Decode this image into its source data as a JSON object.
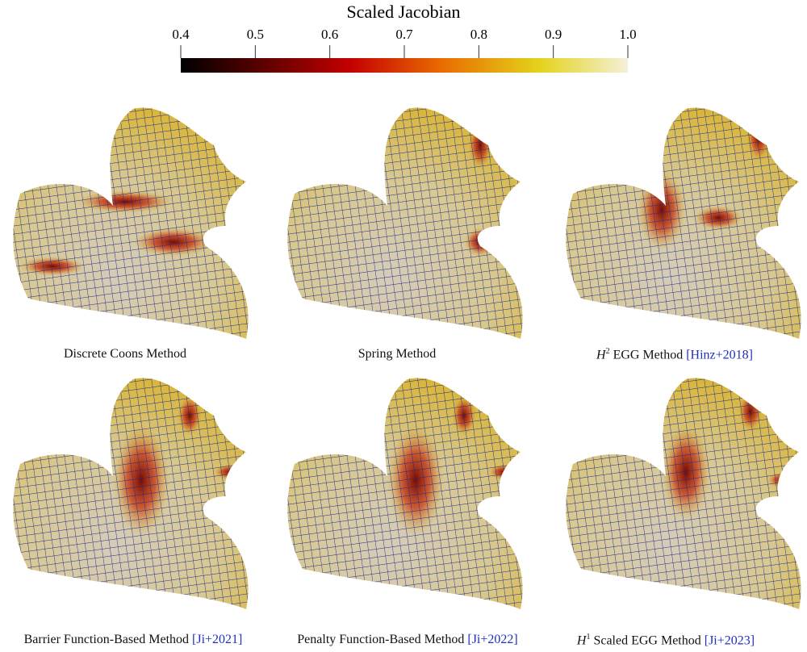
{
  "colorbar": {
    "title": "Scaled Jacobian",
    "range": [
      0.4,
      1.0
    ],
    "ticks": [
      0.4,
      0.5,
      0.6,
      0.7,
      0.8,
      0.9,
      {
        "value": 1,
        "label": "1.0"
      }
    ]
  },
  "panels": [
    {
      "caption": "Discrete Coons Method"
    },
    {
      "caption": "Spring Method"
    },
    {
      "symbol": "H",
      "exponent": "2",
      "caption": "EGG Method",
      "citation": "[Hinz+2018]"
    },
    {
      "caption": "Barrier Function-Based Method",
      "citation": "[Ji+2021]"
    },
    {
      "caption": "Penalty Function-Based Method",
      "citation": "[Ji+2022]"
    },
    {
      "symbol": "H",
      "exponent": "1",
      "caption": "Scaled EGG Method",
      "citation": "[Ji+2023]"
    }
  ]
}
